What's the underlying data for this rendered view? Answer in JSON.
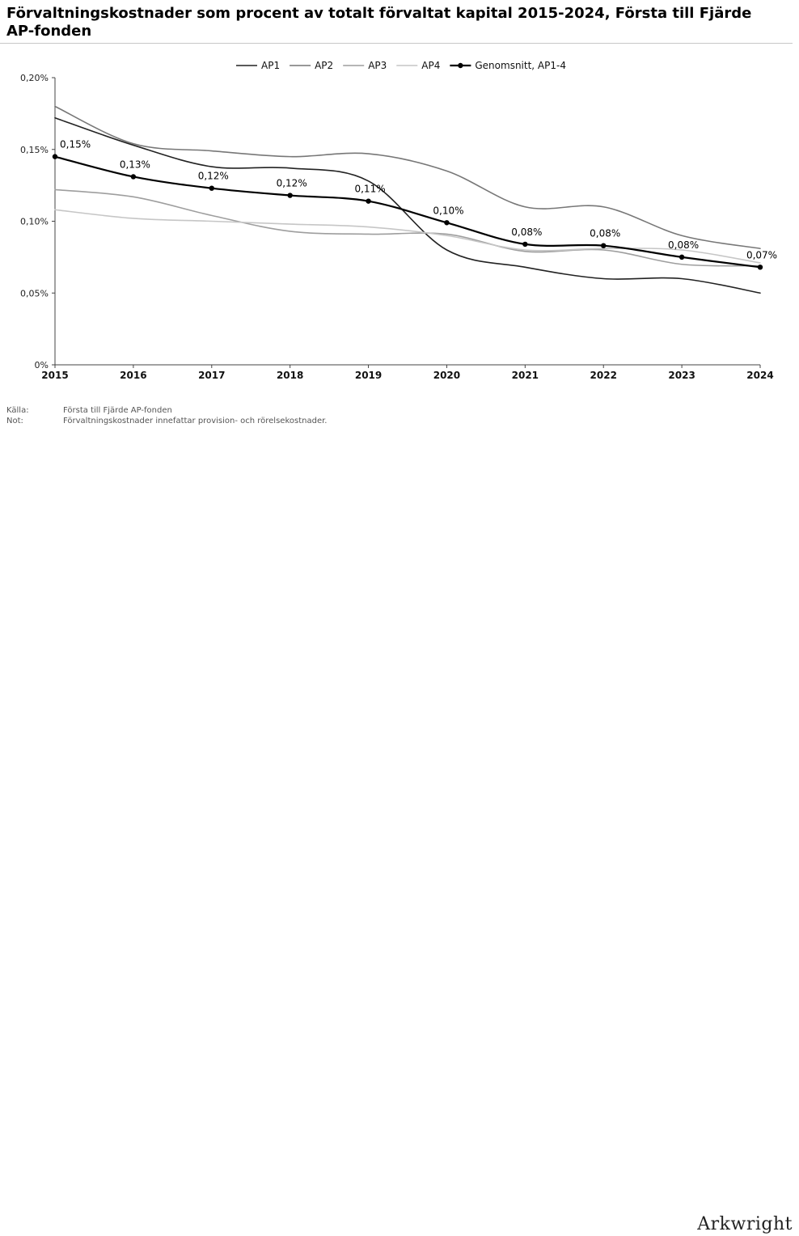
{
  "title": "Förvaltningskostnader som procent av totalt förvaltat kapital 2015-2024, Första till Fjärde AP-fonden",
  "footnotes": [
    {
      "key": "Källa:",
      "text": "Första till Fjärde AP-fonden"
    },
    {
      "key": "Not:",
      "text": "Förvaltningskostnader innefattar provision- och rörelsekostnader."
    }
  ],
  "logo": "Arkwright",
  "chart_data": {
    "type": "line",
    "x": [
      2015,
      2016,
      2017,
      2018,
      2019,
      2020,
      2021,
      2022,
      2023,
      2024
    ],
    "ylim": [
      0,
      0.2
    ],
    "yticks": [
      0,
      0.05,
      0.1,
      0.15,
      0.2
    ],
    "ytick_labels": [
      "0%",
      "0,05%",
      "0,10%",
      "0,15%",
      "0,20%"
    ],
    "xtick_labels": [
      "2015",
      "2016",
      "2017",
      "2018",
      "2019",
      "2020",
      "2021",
      "2022",
      "2023",
      "2024"
    ],
    "legend_position": "top",
    "series": [
      {
        "name": "AP1",
        "color": "#222222",
        "width": 1.6,
        "markers": false,
        "values": [
          0.172,
          0.153,
          0.138,
          0.137,
          0.128,
          0.08,
          0.068,
          0.06,
          0.06,
          0.05
        ]
      },
      {
        "name": "AP2",
        "color": "#777777",
        "width": 1.6,
        "markers": false,
        "values": [
          0.18,
          0.154,
          0.149,
          0.145,
          0.147,
          0.135,
          0.11,
          0.11,
          0.09,
          0.081
        ]
      },
      {
        "name": "AP3",
        "color": "#9e9e9e",
        "width": 1.6,
        "markers": false,
        "values": [
          0.122,
          0.117,
          0.104,
          0.093,
          0.091,
          0.091,
          0.079,
          0.08,
          0.07,
          0.069
        ]
      },
      {
        "name": "AP4",
        "color": "#c6c6c6",
        "width": 1.6,
        "markers": false,
        "values": [
          0.108,
          0.102,
          0.1,
          0.098,
          0.096,
          0.09,
          0.08,
          0.081,
          0.08,
          0.071
        ]
      },
      {
        "name": "Genomsnitt, AP1-4",
        "color": "#000000",
        "width": 2.2,
        "markers": true,
        "values": [
          0.145,
          0.131,
          0.123,
          0.118,
          0.114,
          0.099,
          0.084,
          0.083,
          0.075,
          0.068
        ],
        "data_labels": [
          "0,15%",
          "0,13%",
          "0,12%",
          "0,12%",
          "0,11%",
          "0,10%",
          "0,08%",
          "0,08%",
          "0,08%",
          "0,07%"
        ]
      }
    ]
  }
}
